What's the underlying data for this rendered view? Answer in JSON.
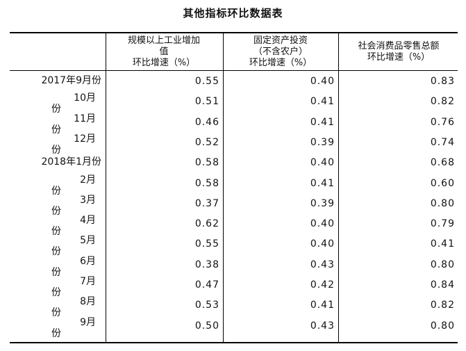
{
  "title": "其他指标环比数据表",
  "headers": {
    "col1": [
      "规模以上工业增加",
      "值",
      "环比增速（%）"
    ],
    "col2": [
      "固定资产投资",
      "（不含农户）",
      "环比增速（%）"
    ],
    "col3": [
      "社会消费品零售总额",
      "环比增速（%）"
    ]
  },
  "rows": [
    {
      "label1": "2017年9月份",
      "label2": "",
      "v1": "0.55",
      "v2": "0.40",
      "v3": "0.83"
    },
    {
      "label1": "10月",
      "label2": "份",
      "v1": "0.51",
      "v2": "0.41",
      "v3": "0.82"
    },
    {
      "label1": "11月",
      "label2": "份",
      "v1": "0.46",
      "v2": "0.41",
      "v3": "0.76"
    },
    {
      "label1": "12月",
      "label2": "份",
      "v1": "0.52",
      "v2": "0.39",
      "v3": "0.74"
    },
    {
      "label1": "2018年1月份",
      "label2": "",
      "v1": "0.58",
      "v2": "0.40",
      "v3": "0.68"
    },
    {
      "label1": "2月",
      "label2": "份",
      "v1": "0.58",
      "v2": "0.41",
      "v3": "0.60"
    },
    {
      "label1": "3月",
      "label2": "份",
      "v1": "0.37",
      "v2": "0.39",
      "v3": "0.80"
    },
    {
      "label1": "4月",
      "label2": "份",
      "v1": "0.62",
      "v2": "0.40",
      "v3": "0.79"
    },
    {
      "label1": "5月",
      "label2": "份",
      "v1": "0.55",
      "v2": "0.40",
      "v3": "0.41"
    },
    {
      "label1": "6月",
      "label2": "份",
      "v1": "0.38",
      "v2": "0.43",
      "v3": "0.80"
    },
    {
      "label1": "7月",
      "label2": "份",
      "v1": "0.47",
      "v2": "0.42",
      "v3": "0.84"
    },
    {
      "label1": "8月",
      "label2": "份",
      "v1": "0.53",
      "v2": "0.41",
      "v3": "0.82"
    },
    {
      "label1": "9月",
      "label2": "份",
      "v1": "0.50",
      "v2": "0.43",
      "v3": "0.80"
    }
  ]
}
